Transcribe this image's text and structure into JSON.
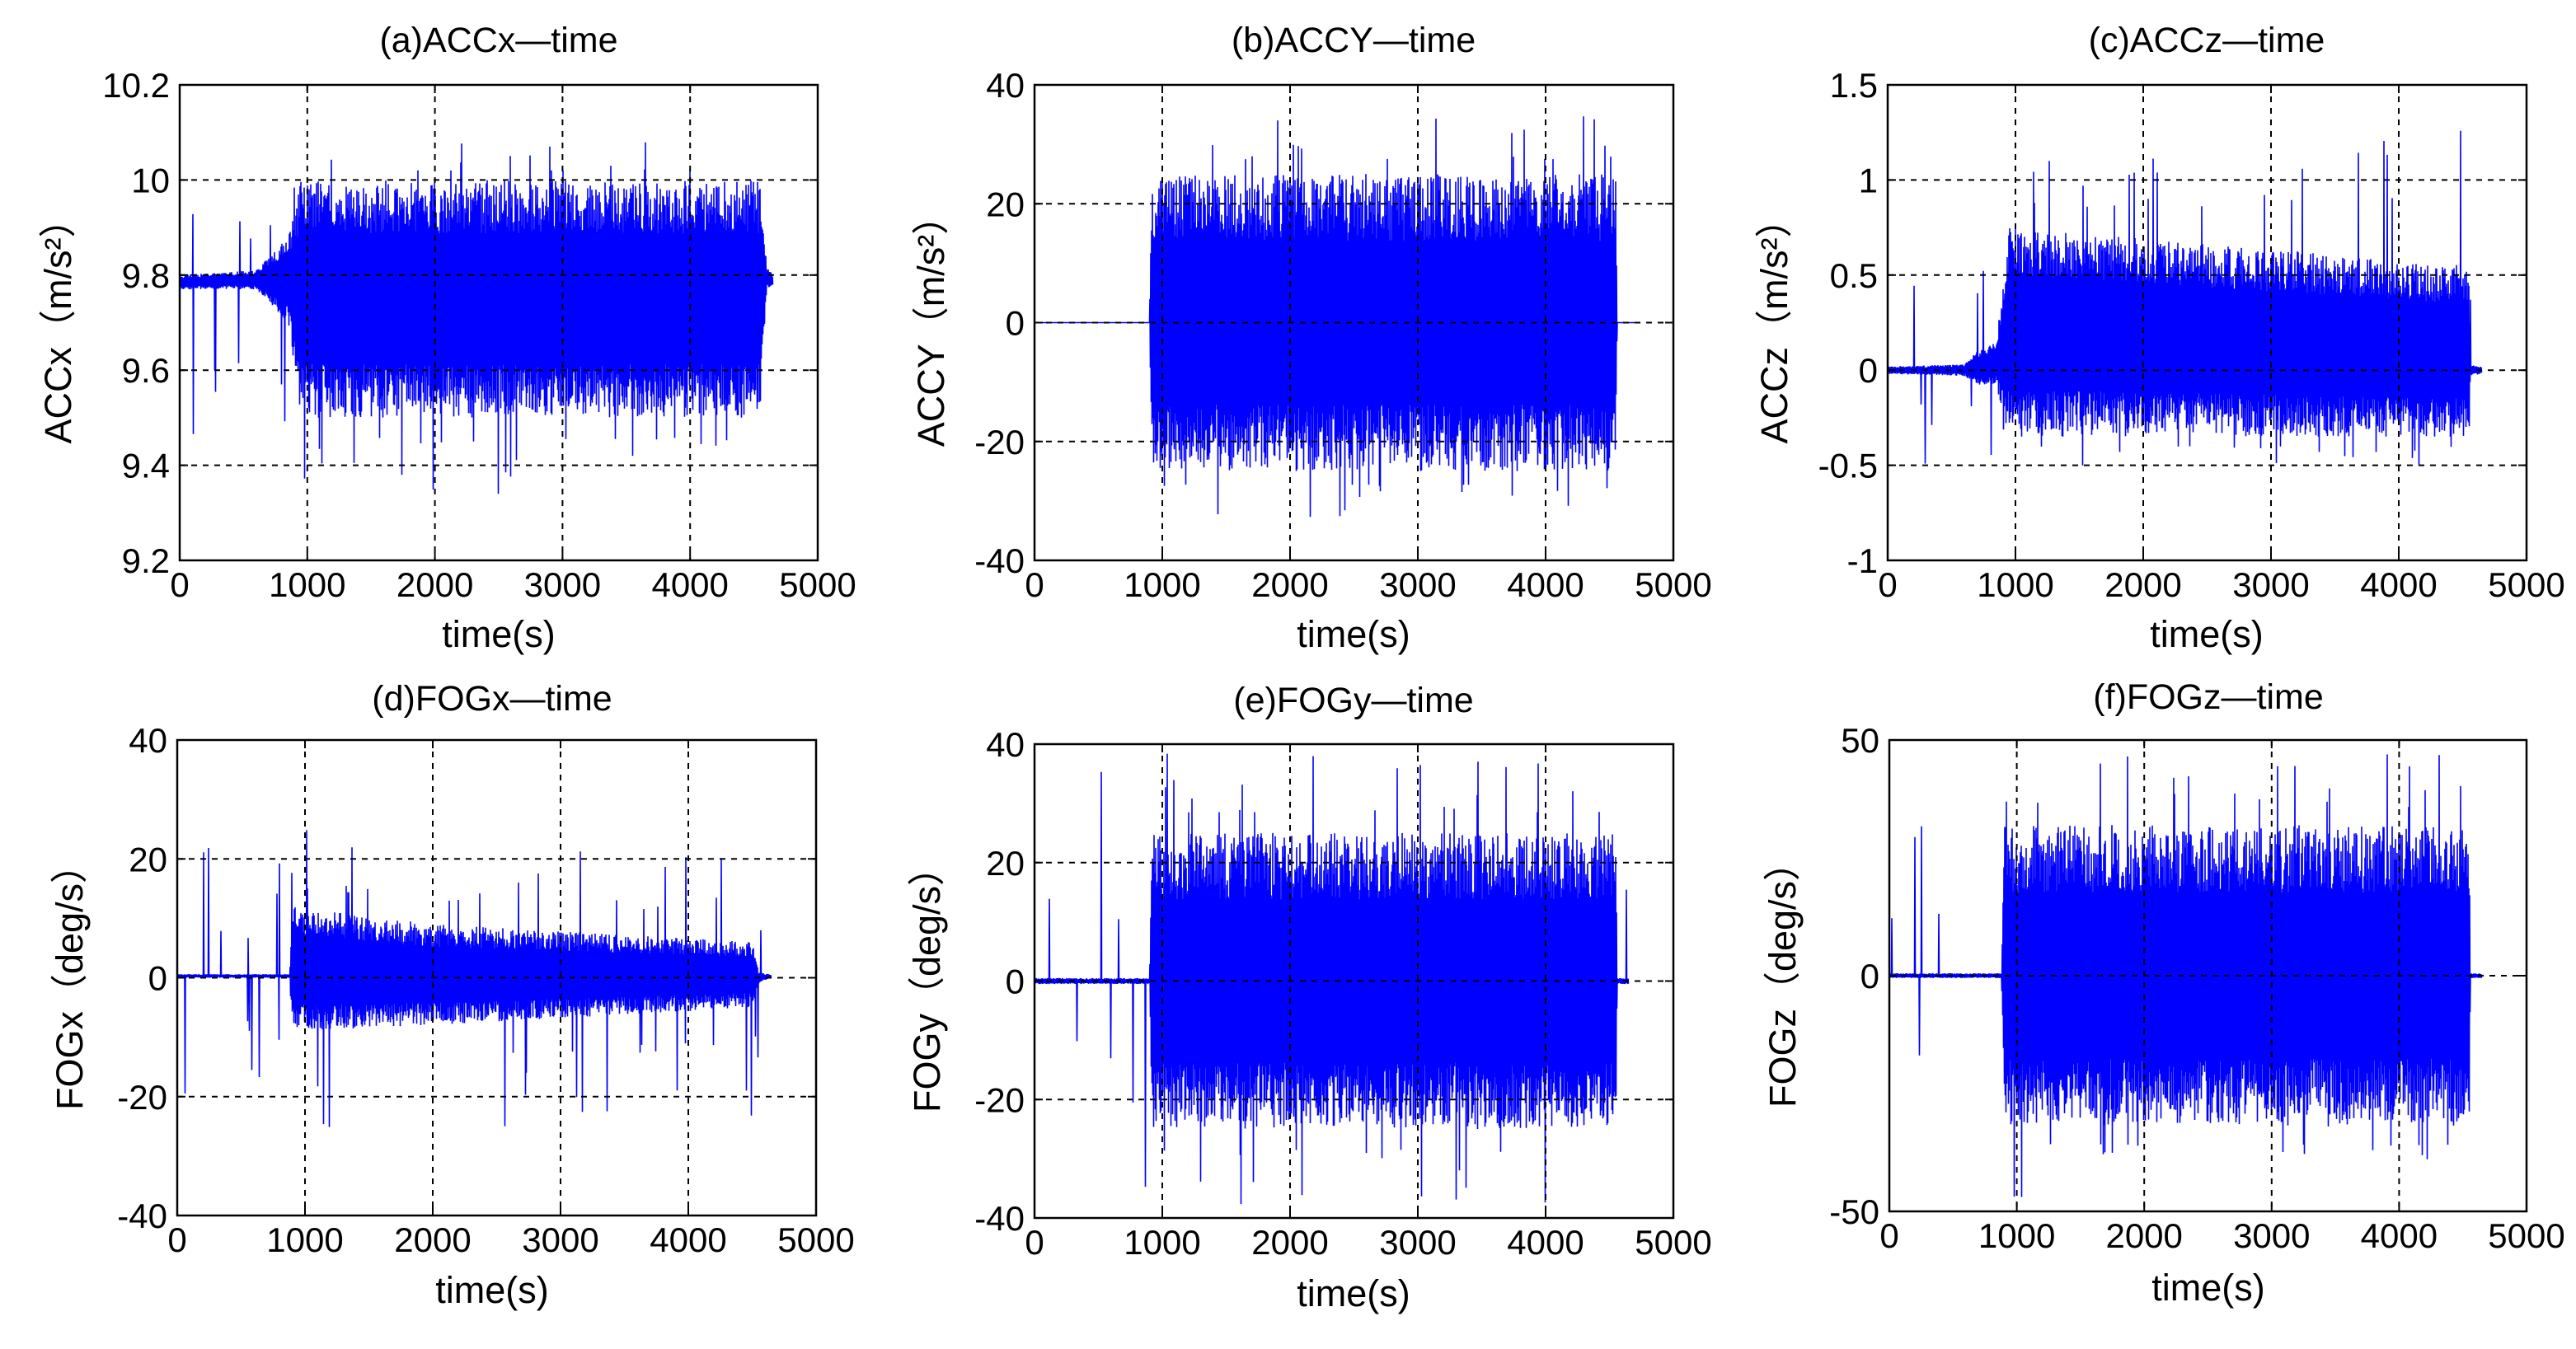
{
  "figure": {
    "signal_color": "#0000ff",
    "panels": [
      {
        "id": "a",
        "title": "(a)ACCx—time",
        "ylabel": "ACCx（m/s²）",
        "xlabel": "time(s)",
        "xticks": [
          "0",
          "1000",
          "2000",
          "3000",
          "4000",
          "5000"
        ],
        "yticks": [
          "9.2",
          "9.4",
          "9.6",
          "9.8",
          "10",
          "10.2"
        ],
        "chart_data": {
          "type": "line",
          "xlim": [
            0,
            5000
          ],
          "ylim": [
            9.2,
            10.2
          ],
          "grid": true,
          "series": [
            {
              "name": "ACCx",
              "envelope": [
                {
                  "t": 0,
                  "low": 9.77,
                  "high": 9.8
                },
                {
                  "t": 600,
                  "low": 9.77,
                  "high": 9.81
                },
                {
                  "t": 850,
                  "low": 9.7,
                  "high": 9.88
                },
                {
                  "t": 950,
                  "low": 9.5,
                  "high": 10.0
                },
                {
                  "t": 4550,
                  "low": 9.5,
                  "high": 10.0
                },
                {
                  "t": 4600,
                  "low": 9.77,
                  "high": 9.82
                },
                {
                  "t": 4650,
                  "low": 9.78,
                  "high": 9.8
                }
              ],
              "extremes": {
                "max": 10.08,
                "min": 9.33
              }
            }
          ]
        }
      },
      {
        "id": "b",
        "title": "(b)ACCY—time",
        "ylabel": "ACCY（m/s²）",
        "xlabel": "time(s)",
        "xticks": [
          "0",
          "1000",
          "2000",
          "3000",
          "4000",
          "5000"
        ],
        "yticks": [
          "-40",
          "-20",
          "0",
          "20",
          "40"
        ],
        "chart_data": {
          "type": "line",
          "xlim": [
            0,
            5000
          ],
          "ylim": [
            -40,
            40
          ],
          "grid": true,
          "series": [
            {
              "name": "ACCY",
              "envelope": [
                {
                  "t": 0,
                  "low": 0,
                  "high": 0
                },
                {
                  "t": 900,
                  "low": 0,
                  "high": 0
                },
                {
                  "t": 920,
                  "low": -25,
                  "high": 25
                },
                {
                  "t": 4550,
                  "low": -25,
                  "high": 25
                },
                {
                  "t": 4560,
                  "low": 0,
                  "high": 0
                },
                {
                  "t": 4700,
                  "low": 0,
                  "high": 0
                }
              ],
              "extremes": {
                "max": 35,
                "min": -34
              }
            }
          ]
        }
      },
      {
        "id": "c",
        "title": "(c)ACCz—time",
        "ylabel": "ACCz（m/s²）",
        "xlabel": "time(s)",
        "xticks": [
          "0",
          "1000",
          "2000",
          "3000",
          "4000",
          "5000"
        ],
        "yticks": [
          "-1",
          "-0.5",
          "0",
          "0.5",
          "1",
          "1.5"
        ],
        "chart_data": {
          "type": "line",
          "xlim": [
            0,
            5000
          ],
          "ylim": [
            -1,
            1.5
          ],
          "grid": true,
          "series": [
            {
              "name": "ACCz",
              "envelope": [
                {
                  "t": 0,
                  "low": -0.02,
                  "high": 0.02
                },
                {
                  "t": 600,
                  "low": -0.03,
                  "high": 0.03
                },
                {
                  "t": 700,
                  "low": -0.08,
                  "high": 0.1
                },
                {
                  "t": 850,
                  "low": -0.08,
                  "high": 0.15
                },
                {
                  "t": 950,
                  "low": -0.35,
                  "high": 0.75
                },
                {
                  "t": 4550,
                  "low": -0.35,
                  "high": 0.55
                },
                {
                  "t": 4560,
                  "low": -0.03,
                  "high": 0.03
                },
                {
                  "t": 4650,
                  "low": -0.02,
                  "high": 0.02
                }
              ],
              "extremes": {
                "max": 1.27,
                "min": -0.55
              }
            }
          ]
        }
      },
      {
        "id": "d",
        "title": "(d)FOGx—time",
        "ylabel": "FOGx（deg/s）",
        "xlabel": "time(s)",
        "xticks": [
          "0",
          "1000",
          "2000",
          "3000",
          "4000",
          "5000"
        ],
        "yticks": [
          "-40",
          "-20",
          "0",
          "20",
          "40"
        ],
        "chart_data": {
          "type": "line",
          "xlim": [
            0,
            5000
          ],
          "ylim": [
            -40,
            40
          ],
          "grid": true,
          "series": [
            {
              "name": "FOGx",
              "envelope": [
                {
                  "t": 0,
                  "low": 0,
                  "high": 0.6
                },
                {
                  "t": 880,
                  "low": 0,
                  "high": 0.6
                },
                {
                  "t": 900,
                  "low": -9,
                  "high": 12
                },
                {
                  "t": 2000,
                  "low": -8,
                  "high": 9
                },
                {
                  "t": 4500,
                  "low": -5,
                  "high": 6
                },
                {
                  "t": 4550,
                  "low": -1,
                  "high": 1
                },
                {
                  "t": 4650,
                  "low": 0,
                  "high": 0.5
                }
              ],
              "extremes": {
                "max": 25,
                "min": -27
              }
            }
          ]
        }
      },
      {
        "id": "e",
        "title": "(e)FOGy—time",
        "ylabel": "FOGy（deg/s）",
        "xlabel": "time(s)",
        "xticks": [
          "0",
          "1000",
          "2000",
          "3000",
          "4000",
          "5000"
        ],
        "yticks": [
          "-40",
          "-20",
          "0",
          "20",
          "40"
        ],
        "chart_data": {
          "type": "line",
          "xlim": [
            0,
            5000
          ],
          "ylim": [
            -40,
            40
          ],
          "grid": true,
          "series": [
            {
              "name": "FOGy",
              "envelope": [
                {
                  "t": 0,
                  "low": -0.5,
                  "high": 0.5
                },
                {
                  "t": 900,
                  "low": -0.5,
                  "high": 0.5
                },
                {
                  "t": 920,
                  "low": -25,
                  "high": 25
                },
                {
                  "t": 4550,
                  "low": -25,
                  "high": 25
                },
                {
                  "t": 4560,
                  "low": -0.5,
                  "high": 0.5
                },
                {
                  "t": 4650,
                  "low": -0.5,
                  "high": 0.5
                }
              ],
              "extremes": {
                "max": 39,
                "min": -39
              }
            }
          ]
        }
      },
      {
        "id": "f",
        "title": "(f)FOGz—time",
        "ylabel": "FOGz（deg/s）",
        "xlabel": "time(s)",
        "xticks": [
          "0",
          "1000",
          "2000",
          "3000",
          "4000",
          "5000"
        ],
        "yticks": [
          "-50",
          "0",
          "50"
        ],
        "chart_data": {
          "type": "line",
          "xlim": [
            0,
            5000
          ],
          "ylim": [
            -50,
            50
          ],
          "grid": true,
          "series": [
            {
              "name": "FOGz",
              "envelope": [
                {
                  "t": 0,
                  "low": -0.5,
                  "high": 0.5
                },
                {
                  "t": 880,
                  "low": -0.5,
                  "high": 0.5
                },
                {
                  "t": 900,
                  "low": -32,
                  "high": 32
                },
                {
                  "t": 4550,
                  "low": -32,
                  "high": 32
                },
                {
                  "t": 4560,
                  "low": -0.5,
                  "high": 0.5
                },
                {
                  "t": 4650,
                  "low": -0.5,
                  "high": 0.5
                }
              ],
              "extremes": {
                "max": 47,
                "min": -47
              }
            }
          ]
        }
      }
    ]
  }
}
